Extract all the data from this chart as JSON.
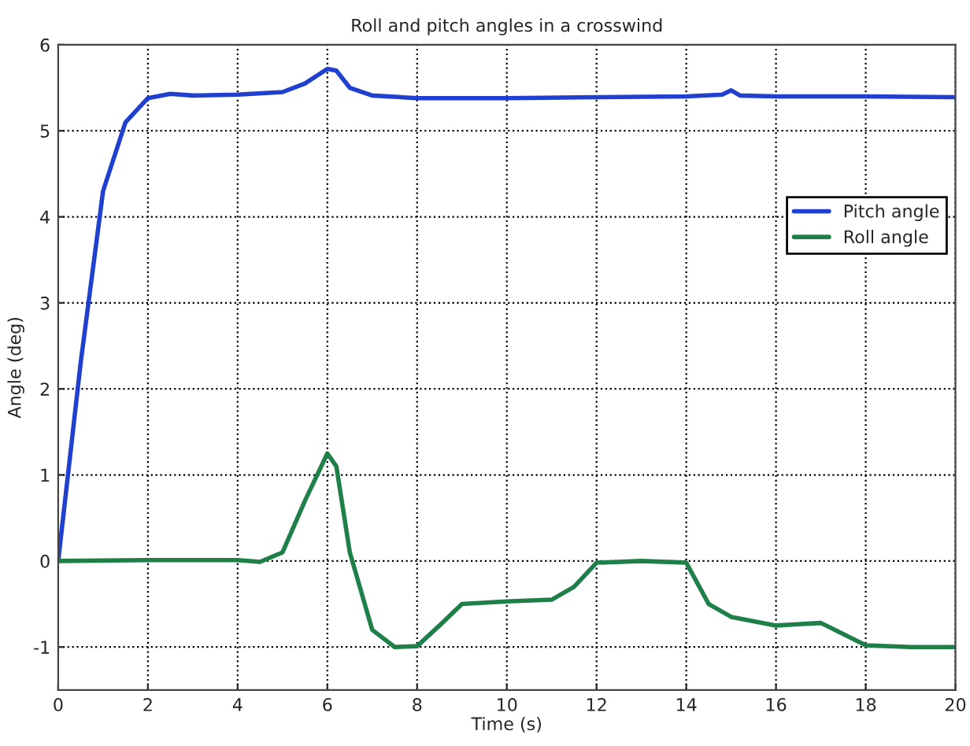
{
  "chart_data": {
    "type": "line",
    "title": "Roll and pitch angles in a crosswind",
    "xlabel": "Time (s)",
    "ylabel": "Angle (deg)",
    "xlim": [
      0,
      20
    ],
    "xticks": [
      0,
      2,
      4,
      6,
      8,
      10,
      12,
      14,
      16,
      18,
      20
    ],
    "ylim": [
      -1.5,
      6
    ],
    "yticks": [
      -1,
      0,
      1,
      2,
      3,
      4,
      5,
      6
    ],
    "grid": true,
    "legend": "right",
    "line_style": "solid",
    "marker": "none",
    "series": [
      {
        "name": "Pitch angle",
        "color": "#2040d0",
        "x": [
          0,
          0.5,
          1,
          1.5,
          2,
          2.5,
          3,
          4,
          5,
          5.5,
          6,
          6.2,
          6.5,
          7,
          8,
          10,
          12,
          14,
          14.8,
          15,
          15.2,
          16,
          18,
          20
        ],
        "values": [
          0,
          2.3,
          4.3,
          5.1,
          5.38,
          5.43,
          5.41,
          5.42,
          5.45,
          5.55,
          5.72,
          5.7,
          5.5,
          5.41,
          5.38,
          5.38,
          5.39,
          5.4,
          5.42,
          5.47,
          5.41,
          5.4,
          5.4,
          5.39
        ]
      },
      {
        "name": "Roll angle",
        "color": "#1e8048",
        "x": [
          0,
          2,
          4,
          4.5,
          5,
          5.5,
          6,
          6.2,
          6.5,
          7,
          7.5,
          8,
          8.5,
          9,
          10,
          11,
          11.5,
          12,
          13,
          14,
          14.5,
          15,
          16,
          17,
          17.5,
          18,
          19,
          20
        ],
        "values": [
          0,
          0.01,
          0.01,
          -0.01,
          0.1,
          0.7,
          1.25,
          1.1,
          0.1,
          -0.8,
          -1.0,
          -0.99,
          -0.75,
          -0.5,
          -0.47,
          -0.45,
          -0.3,
          -0.02,
          0.0,
          -0.02,
          -0.5,
          -0.65,
          -0.75,
          -0.72,
          -0.85,
          -0.98,
          -1.0,
          -1.0
        ]
      }
    ]
  }
}
